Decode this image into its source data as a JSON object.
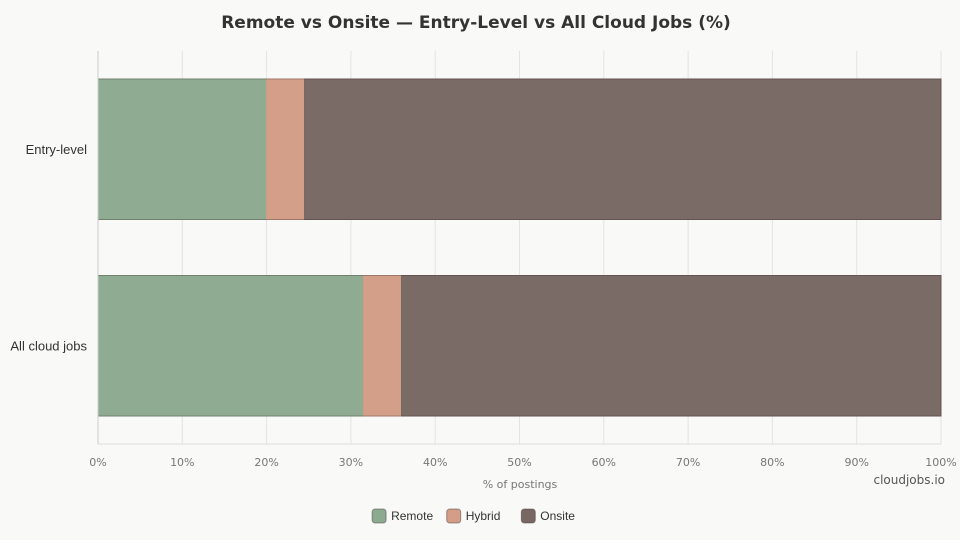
{
  "chart_data": {
    "type": "bar",
    "orientation": "horizontal",
    "stacked": true,
    "title": "Remote vs Onsite — Entry-Level vs All Cloud Jobs (%)",
    "xlabel": "% of postings",
    "ylabel": "",
    "categories": [
      "Entry-level",
      "All cloud jobs"
    ],
    "series": [
      {
        "name": "Remote",
        "values": [
          20,
          31.5
        ],
        "color": "#8daa91"
      },
      {
        "name": "Hybrid",
        "values": [
          4.5,
          4.5
        ],
        "color": "#d39d87"
      },
      {
        "name": "Onsite",
        "values": [
          75.5,
          64
        ],
        "color": "#786863"
      }
    ],
    "xlim": [
      0,
      100
    ],
    "xticks": [
      "0%",
      "10%",
      "20%",
      "30%",
      "40%",
      "50%",
      "60%",
      "70%",
      "80%",
      "90%",
      "100%"
    ],
    "grid": true,
    "legend": "bottom-center",
    "source": "cloudjobs.io"
  }
}
